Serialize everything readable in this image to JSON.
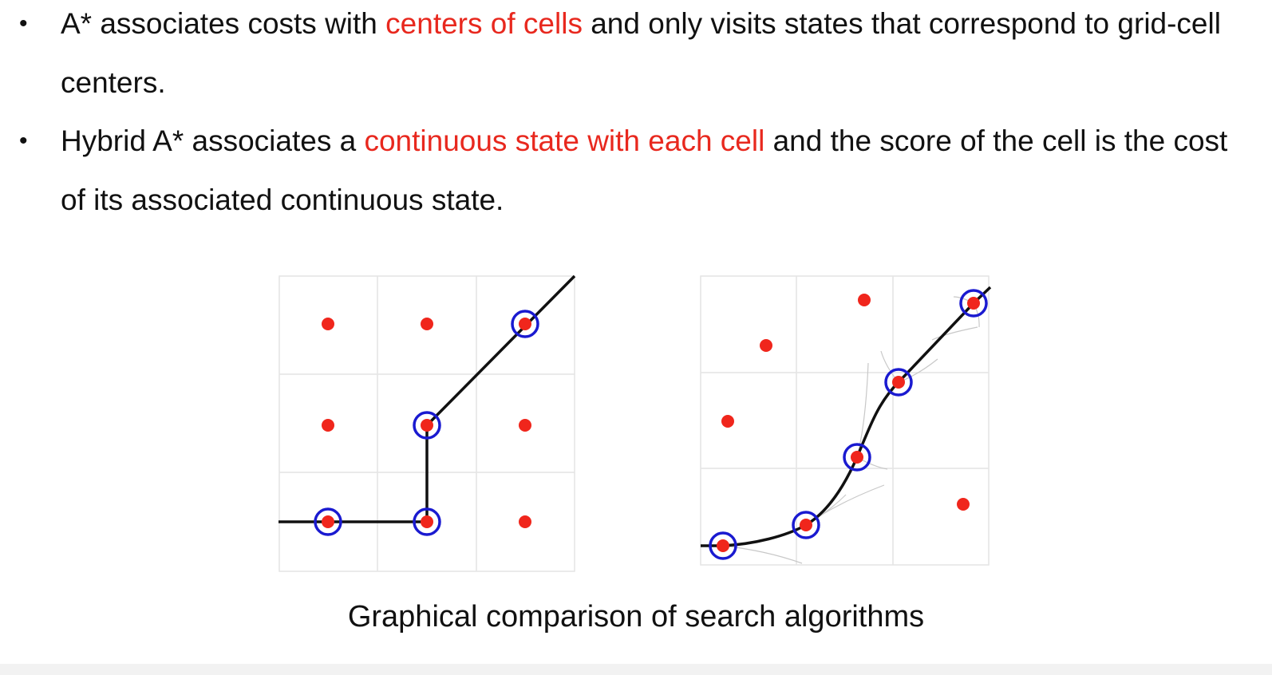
{
  "bullets": [
    {
      "marker": "•",
      "parts": [
        {
          "text": "A* associates costs with ",
          "highlight": false
        },
        {
          "text": "centers of cells",
          "highlight": true
        },
        {
          "text": " and only visits states that correspond to grid-cell centers.",
          "highlight": false
        }
      ]
    },
    {
      "marker": "•",
      "parts": [
        {
          "text": "Hybrid A* associates a ",
          "highlight": false
        },
        {
          "text": "continuous state with each cell",
          "highlight": true
        },
        {
          "text": " and the score of the cell is the cost of its associated continuous state.",
          "highlight": false
        }
      ]
    }
  ],
  "caption": "Graphical comparison of search algorithms",
  "colors": {
    "highlight": "#e8281e",
    "node_dot": "#f0261c",
    "visited_ring": "#1a1ad0",
    "path": "#111111",
    "grid": "#e4e4e4"
  }
}
